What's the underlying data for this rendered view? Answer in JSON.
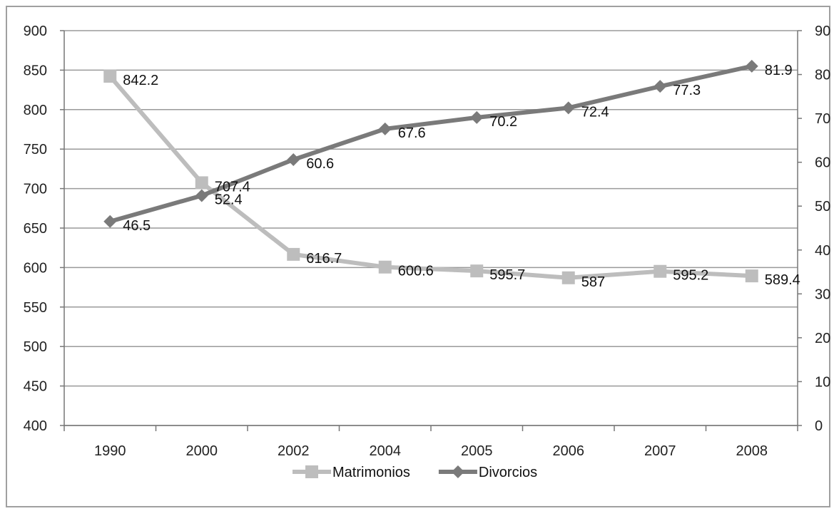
{
  "chart_data": {
    "type": "line",
    "categories": [
      "1990",
      "2000",
      "2002",
      "2004",
      "2005",
      "2006",
      "2007",
      "2008"
    ],
    "y_left": {
      "min": 400,
      "max": 900,
      "step": 50
    },
    "y_right": {
      "min": 0,
      "max": 90,
      "step": 10
    },
    "grid": true,
    "legend_position": "bottom",
    "series": [
      {
        "name": "Matrimonios",
        "axis": "left",
        "marker": "square",
        "color": "#bdbdbd",
        "values": [
          842.2,
          707.4,
          616.7,
          600.6,
          595.7,
          587,
          595.2,
          589.4
        ],
        "labels": [
          "842.2",
          "707.4",
          "616.7",
          "600.6",
          "595.7",
          "587",
          "595.2",
          "589.4"
        ]
      },
      {
        "name": "Divorcios",
        "axis": "right",
        "marker": "diamond",
        "color": "#7a7a7a",
        "values": [
          46.5,
          52.4,
          60.6,
          67.6,
          70.2,
          72.4,
          77.3,
          81.9
        ],
        "labels": [
          "46.5",
          "52.4",
          "60.6",
          "67.6",
          "70.2",
          "72.4",
          "77.3",
          "81.9"
        ]
      }
    ]
  }
}
